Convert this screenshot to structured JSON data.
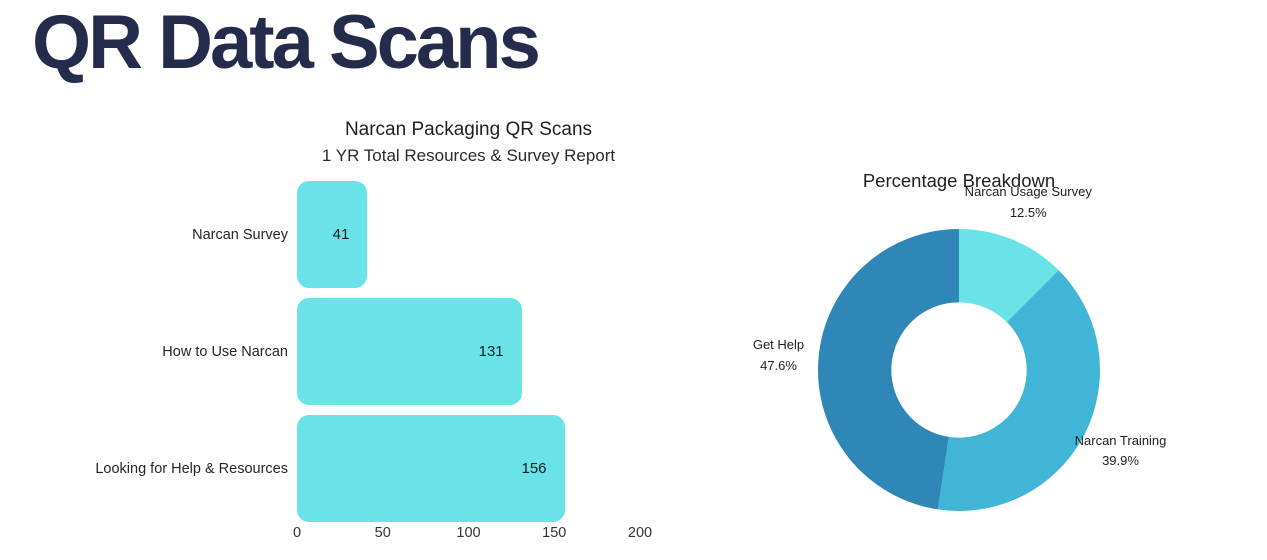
{
  "page": {
    "title": "QR Data Scans",
    "title_color": "#252b4a",
    "background_color": "#ffffff"
  },
  "chart_data": [
    {
      "type": "bar",
      "orientation": "horizontal",
      "title": "Narcan Packaging QR Scans",
      "subtitle": "1 YR Total Resources & Survey Report",
      "categories": [
        "Narcan Survey",
        "How to Use Narcan",
        "Looking for Help & Resources"
      ],
      "values": [
        41,
        131,
        156
      ],
      "value_label_position": "inside-end",
      "xlim": [
        0,
        200
      ],
      "x_ticks": [
        0,
        50,
        100,
        150,
        200
      ],
      "bar_color": "#69E2E8",
      "grid": false
    },
    {
      "type": "pie",
      "subtype": "donut",
      "title": "Percentage Breakdown",
      "labels": [
        "Narcan Usage Survey",
        "Narcan Training",
        "Get Help"
      ],
      "values_pct": [
        12.5,
        39.9,
        47.6
      ],
      "colors": [
        "#69E2E8",
        "#41B5D6",
        "#2E87B7"
      ],
      "start_angle_deg": 0,
      "direction": "clockwise",
      "inner_radius_ratio": 0.48,
      "legend": "none",
      "label_style": "outside-name-and-percent"
    }
  ]
}
